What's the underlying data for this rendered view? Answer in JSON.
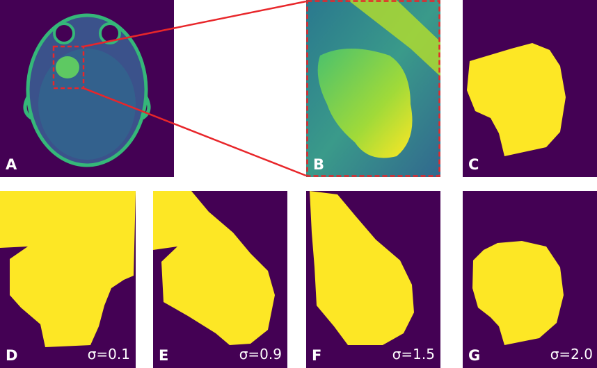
{
  "panels": [
    {
      "label": "A"
    },
    {
      "label": "B"
    },
    {
      "label": "C"
    },
    {
      "label": "D",
      "annotation": "σ=0.1"
    },
    {
      "label": "E",
      "annotation": "σ=0.9"
    },
    {
      "label": "F",
      "annotation": "σ=1.5"
    },
    {
      "label": "G",
      "annotation": "σ=2.0"
    }
  ]
}
